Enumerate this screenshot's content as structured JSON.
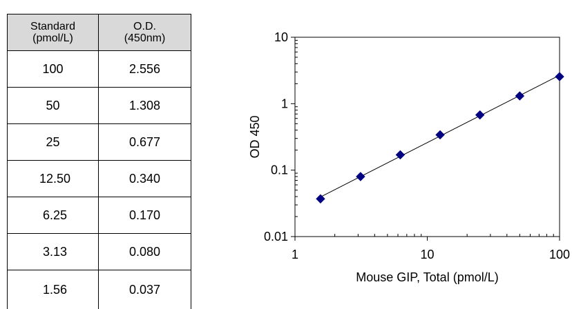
{
  "table": {
    "header": {
      "col1": [
        "Standard",
        "(pmol/L)"
      ],
      "col2": [
        "O.D.",
        "(450nm)"
      ]
    },
    "rows": [
      {
        "standard": "100",
        "od": "2.556"
      },
      {
        "standard": "50",
        "od": "1.308"
      },
      {
        "standard": "25",
        "od": "0.677"
      },
      {
        "standard": "12.50",
        "od": "0.340"
      },
      {
        "standard": "6.25",
        "od": "0.170"
      },
      {
        "standard": "3.13",
        "od": "0.080"
      },
      {
        "standard": "1.56",
        "od": "0.037"
      }
    ]
  },
  "chart_data": {
    "type": "scatter",
    "xlabel": "Mouse GIP, Total (pmol/L)",
    "ylabel": "OD 450",
    "xscale": "log",
    "yscale": "log",
    "xlim": [
      1,
      100
    ],
    "ylim": [
      0.01,
      10
    ],
    "x_ticks": [
      "1",
      "10",
      "100"
    ],
    "y_ticks": [
      "0.01",
      "0.1",
      "1",
      "10"
    ],
    "grid": false,
    "legend": "none",
    "trendline": true,
    "marker": "diamond",
    "marker_color": "#000080",
    "line_color": "#000000",
    "series": [
      {
        "x": [
          1.56,
          3.13,
          6.25,
          12.5,
          25,
          50,
          100
        ],
        "y": [
          0.037,
          0.08,
          0.17,
          0.34,
          0.677,
          1.308,
          2.556
        ]
      }
    ]
  }
}
